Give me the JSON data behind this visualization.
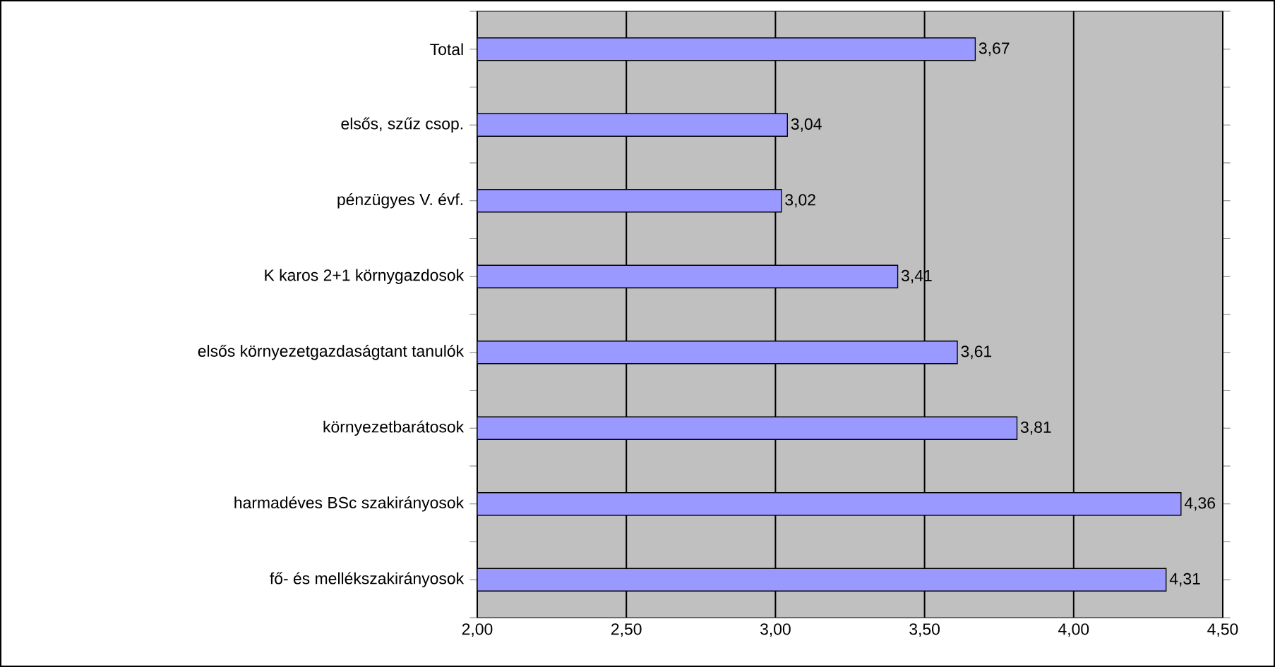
{
  "chart_data": {
    "type": "bar",
    "orientation": "horizontal",
    "categories": [
      "Total",
      "elsős, szűz csop.",
      "pénzügyes V. évf.",
      "K karos 2+1 környgazdosok",
      "elsős környezetgazdaságtant tanulók",
      "környezetbarátosok",
      "harmadéves BSc szakirányosok",
      "fő- és mellékszakirányosok"
    ],
    "values": [
      3.67,
      3.04,
      3.02,
      3.41,
      3.61,
      3.81,
      4.36,
      4.31
    ],
    "value_labels": [
      "3,67",
      "3,04",
      "3,02",
      "3,41",
      "3,61",
      "3,81",
      "4,36",
      "4,31"
    ],
    "color": "#9999ff",
    "xlim": [
      2,
      4.5
    ],
    "xticks": [
      {
        "value": 2,
        "label": "2,00"
      },
      {
        "value": 2.5,
        "label": "2,50"
      },
      {
        "value": 3,
        "label": "3,00"
      },
      {
        "value": 3.5,
        "label": "3,50"
      },
      {
        "value": 4,
        "label": "4,00"
      },
      {
        "value": 4.5,
        "label": "4,50"
      }
    ],
    "grid": "x"
  }
}
